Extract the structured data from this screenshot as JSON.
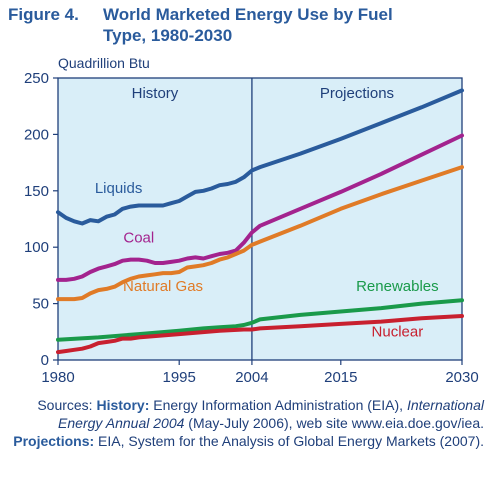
{
  "header": {
    "figure_label": "Figure 4.",
    "title_line1": "World Marketed Energy Use by Fuel",
    "title_line2": "Type, 1980-2030"
  },
  "colors": {
    "plot_bg": "#d9eef8",
    "frame": "#1f3f7a",
    "liquids": "#2a5b9c",
    "coal": "#a3238e",
    "natural_gas": "#e07b27",
    "renewables": "#1a9a4a",
    "nuclear": "#c8202f",
    "text": "#1f3f7a"
  },
  "chart_data": {
    "type": "line",
    "title": "World Marketed Energy Use by Fuel Type, 1980-2030",
    "ylabel": "Quadrillion Btu",
    "xlim": [
      1980,
      2030
    ],
    "ylim": [
      0,
      250
    ],
    "x_ticks": [
      "1980",
      "1995",
      "2004",
      "2015",
      "2030"
    ],
    "y_ticks": [
      "0",
      "50",
      "100",
      "150",
      "200",
      "250"
    ],
    "regions": [
      {
        "label": "History",
        "from": 1980,
        "to": 2004
      },
      {
        "label": "Projections",
        "from": 2004,
        "to": 2030
      }
    ],
    "divider_x": 2004,
    "grid": false,
    "series": [
      {
        "name": "Liquids",
        "color_key": "liquids",
        "x": [
          1980,
          1981,
          1982,
          1983,
          1984,
          1985,
          1986,
          1987,
          1988,
          1989,
          1990,
          1991,
          1992,
          1993,
          1994,
          1995,
          1996,
          1997,
          1998,
          1999,
          2000,
          2001,
          2002,
          2003,
          2004,
          2005,
          2010,
          2015,
          2020,
          2025,
          2030
        ],
        "y": [
          131,
          126,
          123,
          121,
          124,
          123,
          127,
          129,
          134,
          136,
          137,
          137,
          137,
          137,
          139,
          141,
          145,
          149,
          150,
          152,
          155,
          156,
          158,
          162,
          168,
          171,
          183,
          196,
          210,
          224,
          239
        ]
      },
      {
        "name": "Coal",
        "color_key": "coal",
        "x": [
          1980,
          1981,
          1982,
          1983,
          1984,
          1985,
          1986,
          1987,
          1988,
          1989,
          1990,
          1991,
          1992,
          1993,
          1994,
          1995,
          1996,
          1997,
          1998,
          1999,
          2000,
          2001,
          2002,
          2003,
          2004,
          2005,
          2010,
          2015,
          2020,
          2025,
          2030
        ],
        "y": [
          71,
          71,
          72,
          74,
          78,
          81,
          83,
          85,
          88,
          89,
          89,
          88,
          86,
          86,
          87,
          88,
          90,
          91,
          90,
          92,
          94,
          95,
          97,
          104,
          113,
          119,
          134,
          149,
          165,
          182,
          199
        ]
      },
      {
        "name": "Natural Gas",
        "color_key": "natural_gas",
        "x": [
          1980,
          1981,
          1982,
          1983,
          1984,
          1985,
          1986,
          1987,
          1988,
          1989,
          1990,
          1991,
          1992,
          1993,
          1994,
          1995,
          1996,
          1997,
          1998,
          1999,
          2000,
          2001,
          2002,
          2003,
          2004,
          2005,
          2010,
          2015,
          2020,
          2025,
          2030
        ],
        "y": [
          54,
          54,
          54,
          55,
          59,
          62,
          63,
          65,
          69,
          72,
          74,
          75,
          76,
          77,
          77,
          78,
          82,
          83,
          84,
          86,
          89,
          91,
          94,
          97,
          102,
          105,
          119,
          134,
          147,
          159,
          171
        ]
      },
      {
        "name": "Renewables",
        "color_key": "renewables",
        "x": [
          1980,
          1985,
          1990,
          1995,
          1998,
          2000,
          2002,
          2003,
          2004,
          2005,
          2010,
          2015,
          2020,
          2025,
          2030
        ],
        "y": [
          18,
          20,
          23,
          26,
          28,
          29,
          30,
          31,
          33,
          36,
          40,
          43,
          46,
          50,
          53
        ]
      },
      {
        "name": "Nuclear",
        "color_key": "nuclear",
        "x": [
          1980,
          1981,
          1982,
          1983,
          1984,
          1985,
          1986,
          1987,
          1988,
          1989,
          1990,
          1995,
          2000,
          2003,
          2004,
          2005,
          2010,
          2015,
          2020,
          2025,
          2030
        ],
        "y": [
          7,
          8,
          9,
          10,
          12,
          15,
          16,
          17,
          19,
          19,
          20,
          23,
          26,
          27,
          27,
          28,
          30,
          32,
          34,
          37,
          39
        ]
      }
    ],
    "series_labels": [
      {
        "text": "Liquids",
        "x": 1987.5,
        "y": 148,
        "color_key": "liquids"
      },
      {
        "text": "Coal",
        "x": 1990,
        "y": 104,
        "color_key": "coal"
      },
      {
        "text": "Natural Gas",
        "x": 1993,
        "y": 61,
        "color_key": "natural_gas"
      },
      {
        "text": "Renewables",
        "x": 2022,
        "y": 61,
        "color_key": "renewables"
      },
      {
        "text": "Nuclear",
        "x": 2022,
        "y": 21,
        "color_key": "nuclear"
      }
    ]
  },
  "sources": {
    "intro": "Sources: ",
    "history_label": "History:",
    "history_text": " Energy Information Administration (EIA), ",
    "history_pub": "International Energy Annual 2004",
    "history_rest": " (May-July 2006), web site www.eia.doe.gov/iea. ",
    "projections_label": "Projections:",
    "projections_text": " EIA, System for the Analysis of Global Energy Markets (2007)."
  }
}
